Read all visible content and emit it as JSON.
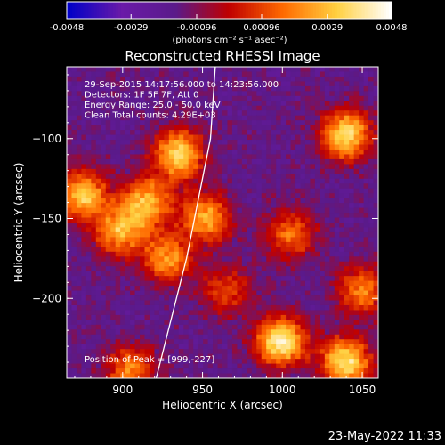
{
  "chart_data": {
    "type": "heatmap",
    "title": "Reconstructed RHESSI Image",
    "xlabel": "Heliocentric X (arcsec)",
    "ylabel": "Heliocentric Y (arcsec)",
    "x_ticks": [
      900,
      950,
      1000,
      1050
    ],
    "y_ticks": [
      -100,
      -150,
      -200
    ],
    "x_range": [
      865,
      1060
    ],
    "y_range": [
      -250,
      -55
    ],
    "colorbar": {
      "ticks": [
        "-0.0048",
        "-0.0029",
        "-0.00096",
        "0.00096",
        "0.0029",
        "0.0048"
      ],
      "range": [
        -0.0048,
        0.0048
      ],
      "units": "(photons cm⁻² s⁻¹ asec⁻²)",
      "colormap": [
        "#0000c8",
        "#6a1aa8",
        "#5a1a8a",
        "#c00000",
        "#ff6a00",
        "#ffd040",
        "#ffffff"
      ]
    },
    "annotations": [
      "29-Sep-2015 14:17:56.000 to 14:23:56.000",
      "Detectors: 1F 5F 7F, Att 0",
      "Energy Range: 25.0 - 50.0 keV",
      "Clean     Total counts: 4.29E+03"
    ],
    "peak_label": "Position of Peak = [999,-227]",
    "sources": [
      {
        "x": 935,
        "y": -110,
        "level": 0.85
      },
      {
        "x": 1040,
        "y": -98,
        "level": 0.9
      },
      {
        "x": 875,
        "y": -135,
        "level": 0.8
      },
      {
        "x": 898,
        "y": -158,
        "level": 0.7
      },
      {
        "x": 915,
        "y": -140,
        "level": 0.75
      },
      {
        "x": 952,
        "y": -150,
        "level": 0.7
      },
      {
        "x": 928,
        "y": -175,
        "level": 0.65
      },
      {
        "x": 1005,
        "y": -160,
        "level": 0.55
      },
      {
        "x": 999,
        "y": -227,
        "level": 1.0
      },
      {
        "x": 1040,
        "y": -240,
        "level": 0.9
      },
      {
        "x": 1050,
        "y": -195,
        "level": 0.6
      },
      {
        "x": 965,
        "y": -195,
        "level": 0.45
      },
      {
        "x": 905,
        "y": -245,
        "level": 0.6
      }
    ],
    "limb_curve": [
      [
        921,
        -250
      ],
      [
        940,
        -175
      ],
      [
        955,
        -100
      ],
      [
        958,
        -55
      ]
    ]
  },
  "footer": {
    "date": "23-May-2022 11:33"
  }
}
